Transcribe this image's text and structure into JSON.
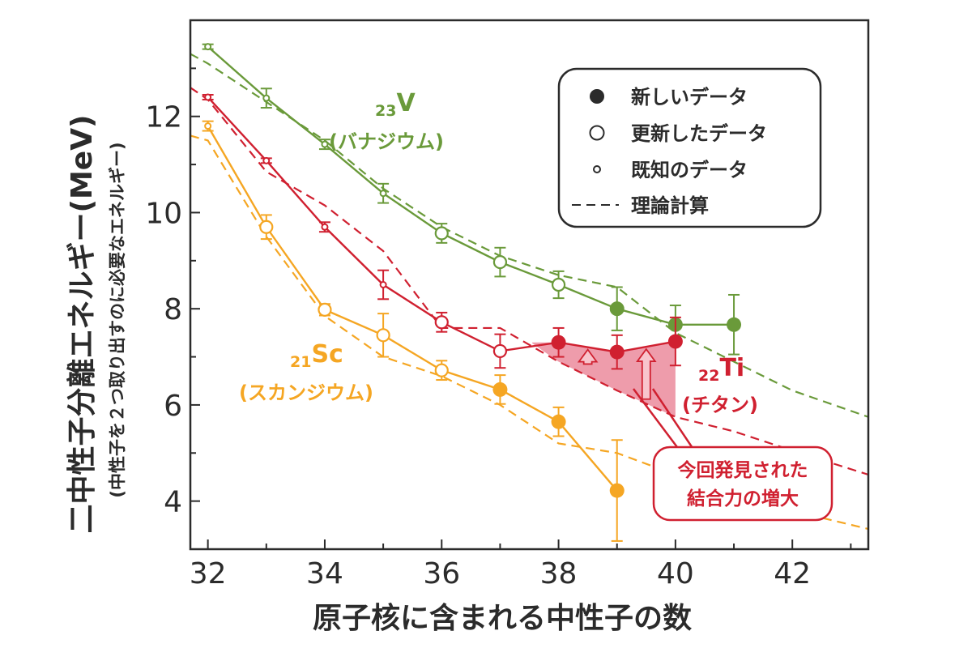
{
  "chart_data": {
    "type": "line",
    "xlabel": "原子核に含まれる中性子の数",
    "ylabel": "二中性子分離エネルギー(MeV)",
    "ylabel_sub": "(中性子を２つ取り出すのに必要なエネルギー)",
    "xlim": [
      31.7,
      43.3
    ],
    "ylim": [
      3.0,
      14.0
    ],
    "xticks": [
      32,
      34,
      36,
      38,
      40,
      42
    ],
    "yticks": [
      4,
      6,
      8,
      10,
      12
    ],
    "xtick_labels": [
      "32",
      "34",
      "36",
      "38",
      "40",
      "42"
    ],
    "ytick_labels": [
      "4",
      "6",
      "8",
      "10",
      "12"
    ],
    "legend": {
      "placement": "top-right",
      "entries": [
        {
          "marker": "filled",
          "label": "新しいデータ"
        },
        {
          "marker": "open",
          "label": "更新したデータ"
        },
        {
          "marker": "small-open",
          "label": "既知のデータ"
        },
        {
          "marker": "dashed",
          "label": "理論計算"
        }
      ]
    },
    "series": [
      {
        "name_sub": "23",
        "name_sym": "V",
        "name_jp": "(バナジウム)",
        "color": "#6a9a3a",
        "points": [
          {
            "x": 32,
            "y": 13.45,
            "err": 0.05,
            "kind": "known"
          },
          {
            "x": 33,
            "y": 12.38,
            "err": 0.2,
            "kind": "known"
          },
          {
            "x": 34,
            "y": 11.42,
            "err": 0.1,
            "kind": "known"
          },
          {
            "x": 35,
            "y": 10.4,
            "err": 0.2,
            "kind": "known"
          },
          {
            "x": 36,
            "y": 9.57,
            "err": 0.2,
            "kind": "updated"
          },
          {
            "x": 37,
            "y": 8.97,
            "err": 0.3,
            "kind": "updated"
          },
          {
            "x": 38,
            "y": 8.5,
            "err": 0.28,
            "kind": "updated"
          },
          {
            "x": 39,
            "y": 8.0,
            "err": 0.45,
            "kind": "new"
          },
          {
            "x": 40,
            "y": 7.67,
            "err": 0.4,
            "kind": "new"
          },
          {
            "x": 41,
            "y": 7.67,
            "err": 0.62,
            "kind": "new"
          }
        ],
        "theory": [
          [
            31.7,
            13.3
          ],
          [
            32,
            13.1
          ],
          [
            33,
            12.3
          ],
          [
            34,
            11.5
          ],
          [
            35,
            10.5
          ],
          [
            36,
            9.7
          ],
          [
            37,
            9.1
          ],
          [
            38,
            8.7
          ],
          [
            39,
            8.45
          ],
          [
            40,
            7.5
          ],
          [
            41,
            6.9
          ],
          [
            42,
            6.3
          ],
          [
            43.3,
            5.75
          ]
        ]
      },
      {
        "name_sub": "22",
        "name_sym": "Ti",
        "name_jp": "(チタン)",
        "color": "#d02030",
        "points": [
          {
            "x": 32,
            "y": 12.4,
            "err": 0.05,
            "kind": "known"
          },
          {
            "x": 33,
            "y": 11.08,
            "err": 0.05,
            "kind": "known"
          },
          {
            "x": 34,
            "y": 9.7,
            "err": 0.1,
            "kind": "known"
          },
          {
            "x": 35,
            "y": 8.5,
            "err": 0.3,
            "kind": "known"
          },
          {
            "x": 36,
            "y": 7.72,
            "err": 0.2,
            "kind": "updated"
          },
          {
            "x": 37,
            "y": 7.12,
            "err": 0.35,
            "kind": "updated"
          },
          {
            "x": 38,
            "y": 7.3,
            "err": 0.3,
            "kind": "new"
          },
          {
            "x": 39,
            "y": 7.1,
            "err": 0.35,
            "kind": "new"
          },
          {
            "x": 40,
            "y": 7.32,
            "err": 0.5,
            "kind": "new"
          }
        ],
        "theory": [
          [
            31.7,
            12.6
          ],
          [
            32,
            12.35
          ],
          [
            33,
            10.85
          ],
          [
            34,
            10.15
          ],
          [
            35,
            9.2
          ],
          [
            36,
            7.6
          ],
          [
            37,
            7.6
          ],
          [
            38,
            6.9
          ],
          [
            39,
            6.3
          ],
          [
            40,
            5.75
          ],
          [
            41,
            5.45
          ],
          [
            42,
            5.05
          ],
          [
            43.3,
            4.55
          ]
        ]
      },
      {
        "name_sub": "21",
        "name_sym": "Sc",
        "name_jp": "(スカンジウム)",
        "color": "#f5a623",
        "points": [
          {
            "x": 32,
            "y": 11.8,
            "err": 0.1,
            "kind": "known"
          },
          {
            "x": 33,
            "y": 9.7,
            "err": 0.25,
            "kind": "updated"
          },
          {
            "x": 34,
            "y": 7.98,
            "err": 0.12,
            "kind": "updated"
          },
          {
            "x": 35,
            "y": 7.45,
            "err": 0.45,
            "kind": "updated"
          },
          {
            "x": 36,
            "y": 6.72,
            "err": 0.2,
            "kind": "updated"
          },
          {
            "x": 37,
            "y": 6.32,
            "err": 0.3,
            "kind": "new"
          },
          {
            "x": 38,
            "y": 5.65,
            "err": 0.3,
            "kind": "new"
          },
          {
            "x": 39,
            "y": 4.22,
            "err": 1.05,
            "kind": "new"
          }
        ],
        "theory": [
          [
            31.7,
            11.6
          ],
          [
            32,
            11.5
          ],
          [
            33,
            9.5
          ],
          [
            34,
            7.85
          ],
          [
            35,
            7.0
          ],
          [
            36,
            6.6
          ],
          [
            37,
            6.0
          ],
          [
            38,
            5.2
          ],
          [
            39,
            5.0
          ],
          [
            40,
            4.55
          ],
          [
            41,
            4.1
          ],
          [
            42,
            3.8
          ],
          [
            43.3,
            3.42
          ]
        ]
      }
    ],
    "annotation": {
      "line1": "今回発見された",
      "line2": "結合力の増大",
      "color": "#d02030",
      "region_x": [
        37.55,
        40
      ],
      "region_upper": [
        7.3,
        7.1,
        7.32
      ],
      "region_lower": [
        6.9,
        6.3,
        5.75
      ],
      "arrows_x": [
        38.5,
        39.5
      ]
    }
  }
}
